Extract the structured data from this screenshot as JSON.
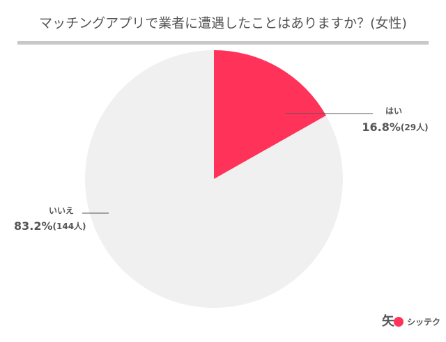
{
  "chart_data": {
    "type": "pie",
    "title": "マッチングアプリで業者に遭遇したことはありますか？(女性)",
    "categories": [
      "はい",
      "いいえ"
    ],
    "values": [
      16.8,
      83.2
    ],
    "value_labels": [
      "16.8%",
      "83.2%"
    ],
    "count_labels": [
      "(29人)",
      "(144人)"
    ],
    "colors": [
      "#ff3359",
      "#f0f0f0"
    ],
    "logo": "シッテク"
  }
}
